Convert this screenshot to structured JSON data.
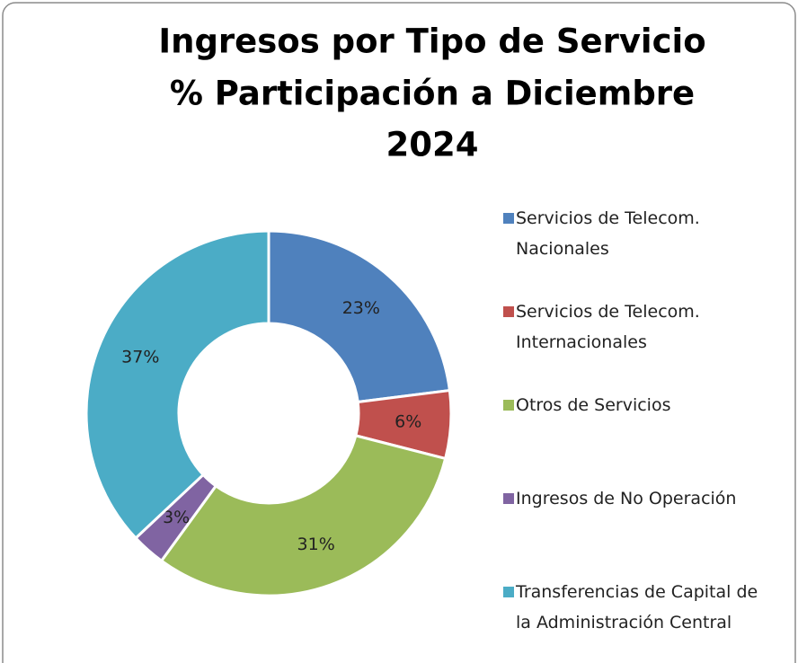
{
  "chart_data": {
    "type": "donut",
    "title": [
      "Ingresos por Tipo de Servicio",
      "% Participación a Diciembre",
      "2024"
    ],
    "categories": [
      "Servicios de Telecom. Nacionales",
      "Servicios de Telecom. Internacionales",
      "Otros de Servicios",
      "Ingresos de No Operación",
      "Transferencias de Capital de la Administración Central"
    ],
    "values": [
      23,
      6,
      31,
      3,
      37
    ],
    "value_labels": [
      "23%",
      "6%",
      "31%",
      "3%",
      "37%"
    ],
    "colors": [
      "#4f81bd",
      "#c0504d",
      "#9bbb59",
      "#8064a2",
      "#4bacc6"
    ],
    "legend": "right"
  }
}
